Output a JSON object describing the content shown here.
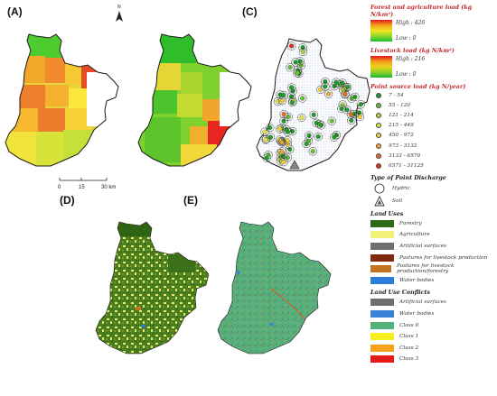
{
  "panel_labels": {
    "a": "(A)",
    "c": "(C)",
    "d": "(D)",
    "e": "(E)"
  },
  "north_arrow_label": "N",
  "scale_bar": {
    "ticks": [
      "0",
      "15",
      "30 km"
    ]
  },
  "legend": {
    "forest_agri": {
      "title": "Forest and agriculture load (kg N/km²)",
      "high": "High : 426",
      "low": "Low : 0"
    },
    "livestock": {
      "title": "Livestock load (kg N/km²)",
      "high": "High : 216",
      "low": "Low : 0"
    },
    "point_source": {
      "title": "Point source load (kg N/year)",
      "classes": [
        {
          "label": "7 - 54",
          "color": "#1e9e2a"
        },
        {
          "label": "55 - 120",
          "color": "#62c12f"
        },
        {
          "label": "121 - 214",
          "color": "#a6d63c"
        },
        {
          "label": "215 - 449",
          "color": "#e2e83b"
        },
        {
          "label": "450 - 972",
          "color": "#f5d231"
        },
        {
          "label": "973 - 3132",
          "color": "#f3a12a"
        },
        {
          "label": "3133 - 6570",
          "color": "#ed6a24"
        },
        {
          "label": "6571 - 31125",
          "color": "#e02a1f"
        }
      ]
    },
    "discharge": {
      "title": "Type of Point Discharge",
      "items": [
        {
          "label": "Hydric",
          "icon": "circle-outline"
        },
        {
          "label": "Soil",
          "icon": "triangle-outline"
        }
      ]
    },
    "land_uses": {
      "title": "Land Uses",
      "items": [
        {
          "label": "Forestry",
          "color": "#2f6b16"
        },
        {
          "label": "Agriculture",
          "color": "#f2f27a"
        },
        {
          "label": "Artificial surfaces",
          "color": "#6e6e6e"
        },
        {
          "label": "Pastures for livestock production",
          "color": "#7e2a10"
        },
        {
          "label": "Pastures for livestock production/forestry",
          "color": "#c2741f"
        },
        {
          "label": "Water bodies",
          "color": "#2c7bd9"
        }
      ]
    },
    "conflicts": {
      "title": "Land Use Conflicts",
      "items": [
        {
          "label": "Artificial surfaces",
          "color": "#6e6e6e"
        },
        {
          "label": "Water bodies",
          "color": "#3a82d6"
        },
        {
          "label": "Class 0",
          "color": "#53b27c"
        },
        {
          "label": "Class 1",
          "color": "#f6ee1d"
        },
        {
          "label": "Class 2",
          "color": "#f4a21b"
        },
        {
          "label": "Class 3",
          "color": "#e8191b"
        }
      ]
    }
  }
}
